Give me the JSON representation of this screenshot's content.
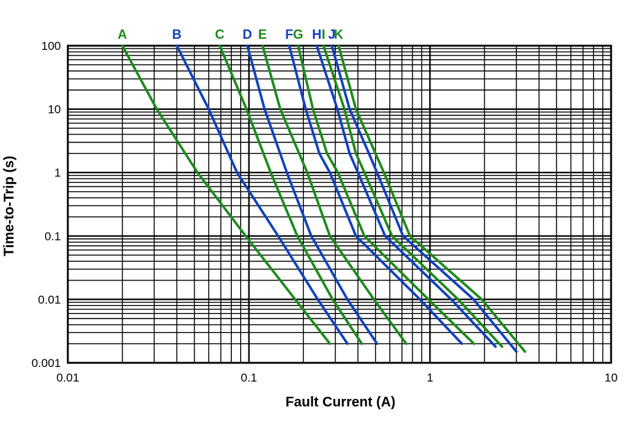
{
  "figure": {
    "background_color": "#FFFFFF",
    "grid_color": "#000000",
    "y_axis_title": "Time-to-Trip (s)",
    "x_axis_title": "Fault Current (A)"
  },
  "colors": {
    "green": "#1E8A1E",
    "blue": "#1141BE"
  },
  "chart_data": {
    "type": "line",
    "title": "",
    "xlabel": "Fault Current (A)",
    "ylabel": "Time-to-Trip (s)",
    "x_scale": "log",
    "y_scale": "log",
    "xlim": [
      0.01,
      10
    ],
    "ylim": [
      0.001,
      100
    ],
    "grid": "major and minor logarithmic gridlines, black",
    "legend_position": "curve letters above plot, colored to match curves",
    "x_ticks": [
      {
        "value": 0.01,
        "label": "0.01"
      },
      {
        "value": 0.1,
        "label": "0.1"
      },
      {
        "value": 1,
        "label": "1"
      },
      {
        "value": 10,
        "label": "10"
      }
    ],
    "y_ticks": [
      {
        "value": 100,
        "label": "100"
      },
      {
        "value": 10,
        "label": "10"
      },
      {
        "value": 1,
        "label": "1"
      },
      {
        "value": 0.1,
        "label": "0.1"
      },
      {
        "value": 0.01,
        "label": "0.01"
      },
      {
        "value": 0.001,
        "label": "0.001"
      }
    ],
    "series": [
      {
        "name": "A",
        "color": "green",
        "label_x": 0.02,
        "points": [
          [
            0.02,
            100
          ],
          [
            0.031,
            10
          ],
          [
            0.052,
            1
          ],
          [
            0.096,
            0.1
          ],
          [
            0.18,
            0.01
          ],
          [
            0.28,
            0.002
          ]
        ]
      },
      {
        "name": "B",
        "color": "blue",
        "label_x": 0.04,
        "points": [
          [
            0.04,
            100
          ],
          [
            0.06,
            10
          ],
          [
            0.086,
            1
          ],
          [
            0.145,
            0.1
          ],
          [
            0.24,
            0.01
          ],
          [
            0.35,
            0.002
          ]
        ]
      },
      {
        "name": "C",
        "color": "green",
        "label_x": 0.069,
        "points": [
          [
            0.069,
            100
          ],
          [
            0.097,
            10
          ],
          [
            0.132,
            1
          ],
          [
            0.185,
            0.1
          ],
          [
            0.29,
            0.01
          ],
          [
            0.42,
            0.002
          ]
        ]
      },
      {
        "name": "D",
        "color": "blue",
        "label_x": 0.098,
        "points": [
          [
            0.098,
            100
          ],
          [
            0.122,
            10
          ],
          [
            0.162,
            1
          ],
          [
            0.221,
            0.1
          ],
          [
            0.35,
            0.01
          ],
          [
            0.51,
            0.002
          ]
        ]
      },
      {
        "name": "E",
        "color": "green",
        "label_x": 0.119,
        "points": [
          [
            0.119,
            100
          ],
          [
            0.149,
            10
          ],
          [
            0.21,
            1
          ],
          [
            0.28,
            0.1
          ],
          [
            0.49,
            0.01
          ],
          [
            0.74,
            0.002
          ]
        ]
      },
      {
        "name": "F",
        "color": "blue",
        "label_x": 0.167,
        "points": [
          [
            0.167,
            100
          ],
          [
            0.206,
            10
          ],
          [
            0.245,
            2
          ],
          [
            0.28,
            1
          ],
          [
            0.39,
            0.1
          ],
          [
            0.88,
            0.01
          ],
          [
            1.5,
            0.002
          ]
        ]
      },
      {
        "name": "G",
        "color": "green",
        "label_x": 0.187,
        "points": [
          [
            0.187,
            100
          ],
          [
            0.226,
            10
          ],
          [
            0.27,
            2
          ],
          [
            0.31,
            1
          ],
          [
            0.434,
            0.1
          ],
          [
            0.98,
            0.01
          ],
          [
            1.75,
            0.002
          ]
        ]
      },
      {
        "name": "H",
        "color": "blue",
        "label_x": 0.237,
        "points": [
          [
            0.237,
            100
          ],
          [
            0.308,
            10
          ],
          [
            0.36,
            2
          ],
          [
            0.4,
            1
          ],
          [
            0.565,
            0.1
          ],
          [
            1.31,
            0.01
          ],
          [
            2.3,
            0.0018
          ]
        ]
      },
      {
        "name": "I",
        "color": "green",
        "label_x": 0.258,
        "points": [
          [
            0.258,
            100
          ],
          [
            0.337,
            10
          ],
          [
            0.39,
            2
          ],
          [
            0.435,
            1
          ],
          [
            0.617,
            0.1
          ],
          [
            1.43,
            0.01
          ],
          [
            2.5,
            0.0018
          ]
        ]
      },
      {
        "name": "J",
        "color": "blue",
        "label_x": 0.287,
        "points": [
          [
            0.287,
            100
          ],
          [
            0.36,
            10
          ],
          [
            0.46,
            2
          ],
          [
            0.51,
            1
          ],
          [
            0.71,
            0.1
          ],
          [
            1.74,
            0.01
          ],
          [
            3.0,
            0.0015
          ]
        ]
      },
      {
        "name": "K",
        "color": "green",
        "label_x": 0.313,
        "points": [
          [
            0.313,
            100
          ],
          [
            0.39,
            10
          ],
          [
            0.5,
            2
          ],
          [
            0.557,
            1
          ],
          [
            0.775,
            0.1
          ],
          [
            1.93,
            0.01
          ],
          [
            3.35,
            0.0015
          ]
        ]
      }
    ]
  }
}
